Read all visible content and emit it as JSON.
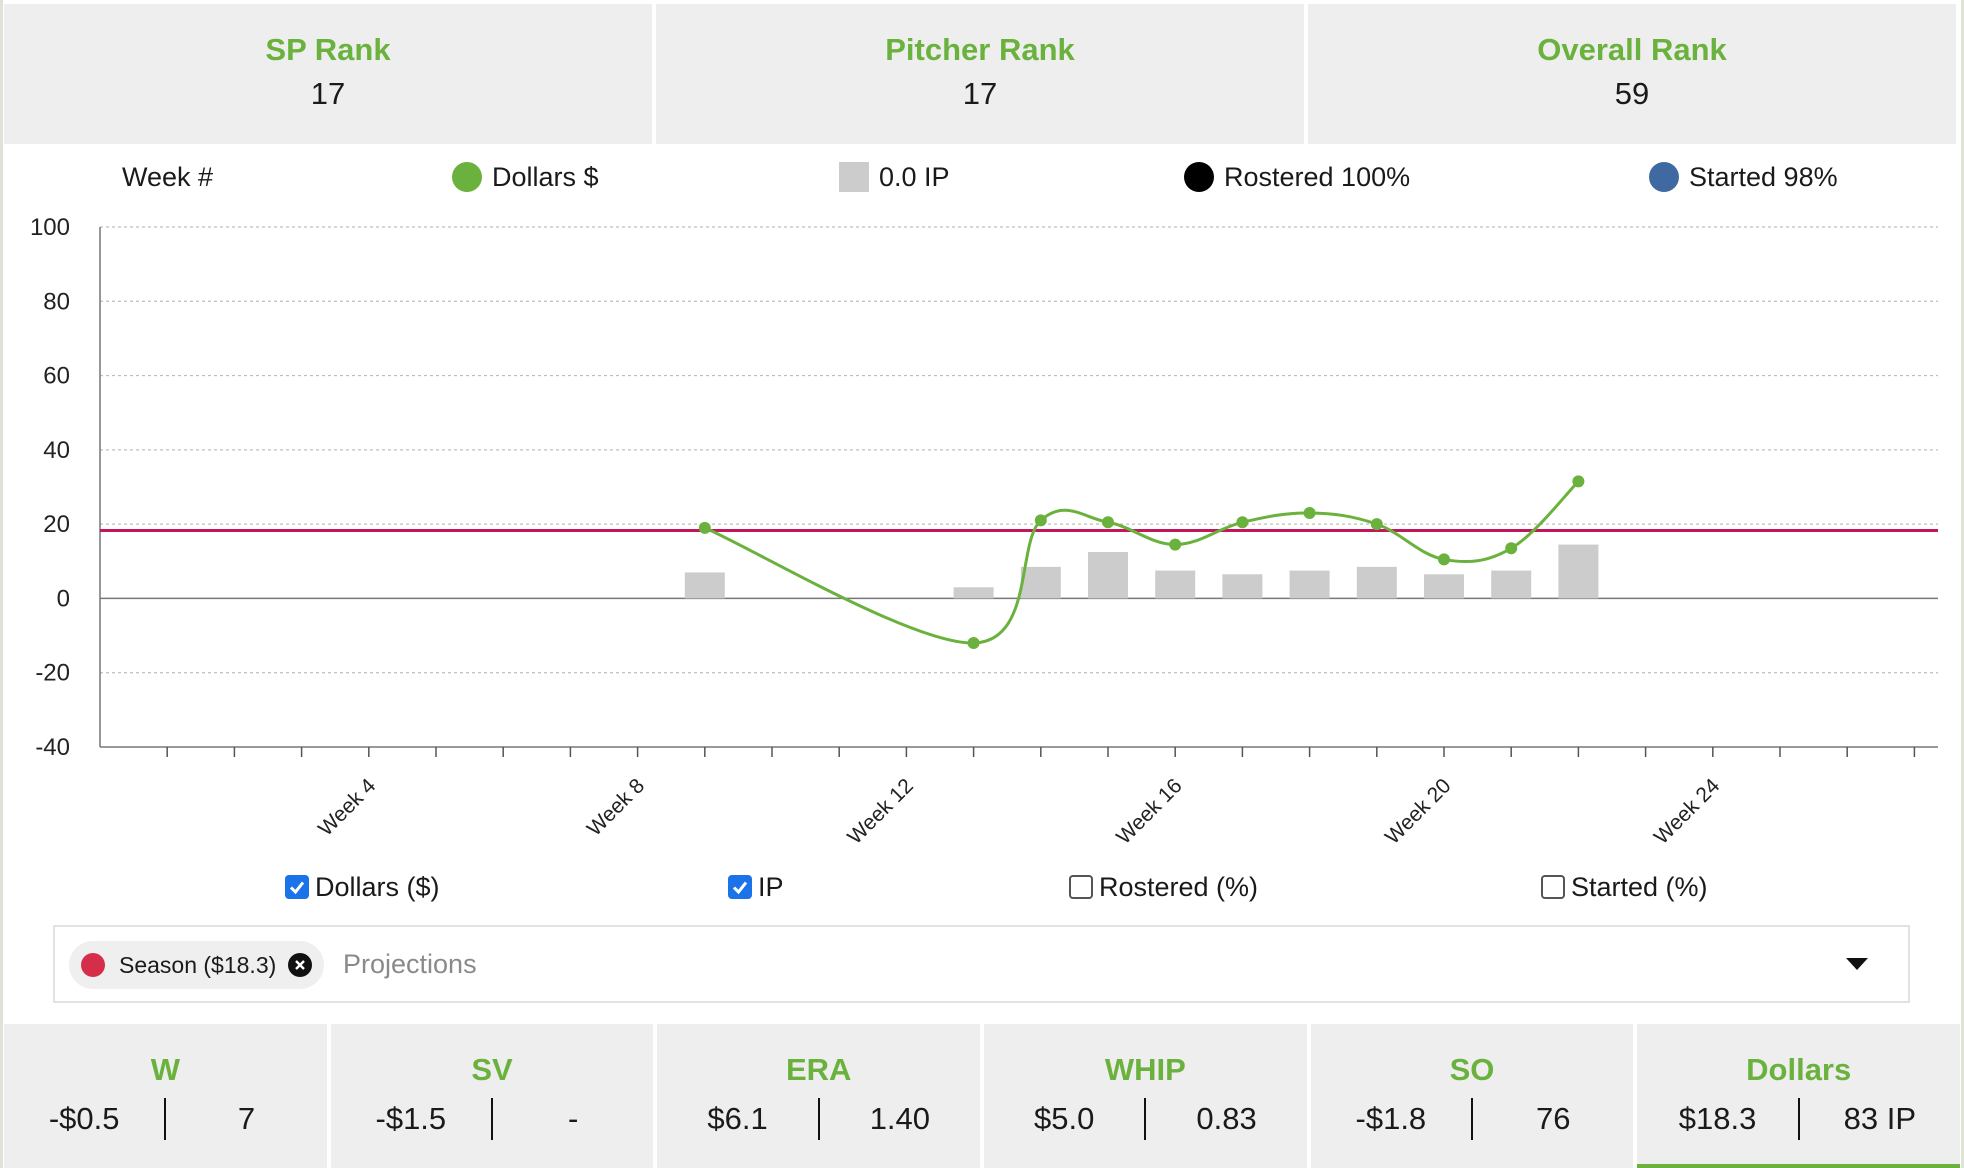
{
  "ranks": [
    {
      "label": "SP Rank",
      "value": "17"
    },
    {
      "label": "Pitcher Rank",
      "value": "17"
    },
    {
      "label": "Overall Rank",
      "value": "59"
    }
  ],
  "legend": {
    "week": "Week #",
    "dollars": "Dollars $",
    "ip": "0.0 IP",
    "rostered": "Rostered 100%",
    "started": "Started 98%"
  },
  "colors": {
    "green": "#6ab23d",
    "bar": "#cccccc",
    "season_line": "#c2185b",
    "started": "#3f6aa1",
    "rostered": "#000000"
  },
  "chart_data": {
    "type": "line",
    "ylim": [
      -40,
      100
    ],
    "yticks": [
      100,
      80,
      60,
      40,
      20,
      0,
      -20,
      -40
    ],
    "x_range": [
      1,
      27
    ],
    "x_tick_labels": [
      {
        "week": 4,
        "label": "Week 4"
      },
      {
        "week": 8,
        "label": "Week 8"
      },
      {
        "week": 12,
        "label": "Week 12"
      },
      {
        "week": 16,
        "label": "Week 16"
      },
      {
        "week": 20,
        "label": "Week 20"
      },
      {
        "week": 24,
        "label": "Week 24"
      }
    ],
    "series": [
      {
        "name": "Dollars $",
        "type": "line",
        "points": [
          {
            "x": 9,
            "y": 19
          },
          {
            "x": 13,
            "y": -12
          },
          {
            "x": 14,
            "y": 21
          },
          {
            "x": 15,
            "y": 20.5
          },
          {
            "x": 16,
            "y": 14.5
          },
          {
            "x": 17,
            "y": 20.5
          },
          {
            "x": 18,
            "y": 23
          },
          {
            "x": 19,
            "y": 20
          },
          {
            "x": 20,
            "y": 10.5
          },
          {
            "x": 21,
            "y": 13.5
          },
          {
            "x": 22,
            "y": 31.5
          }
        ]
      },
      {
        "name": "IP",
        "type": "bar",
        "points": [
          {
            "x": 9,
            "y": 7
          },
          {
            "x": 13,
            "y": 3
          },
          {
            "x": 14,
            "y": 8.5
          },
          {
            "x": 15,
            "y": 12.5
          },
          {
            "x": 16,
            "y": 7.5
          },
          {
            "x": 17,
            "y": 6.5
          },
          {
            "x": 18,
            "y": 7.5
          },
          {
            "x": 19,
            "y": 8.5
          },
          {
            "x": 20,
            "y": 6.5
          },
          {
            "x": 21,
            "y": 7.5
          },
          {
            "x": 22,
            "y": 14.5
          }
        ]
      }
    ],
    "reference_line": {
      "name": "Season ($18.3)",
      "y": 18.3
    }
  },
  "checkboxes": [
    {
      "label": "Dollars ($)",
      "checked": true
    },
    {
      "label": "IP",
      "checked": true
    },
    {
      "label": "Rostered (%)",
      "checked": false
    },
    {
      "label": "Started (%)",
      "checked": false
    }
  ],
  "selector": {
    "chip_label": "Season ($18.3)",
    "placeholder": "Projections"
  },
  "stats": [
    {
      "label": "W",
      "left": "-$0.5",
      "right": "7"
    },
    {
      "label": "SV",
      "left": "-$1.5",
      "right": "-"
    },
    {
      "label": "ERA",
      "left": "$6.1",
      "right": "1.40"
    },
    {
      "label": "WHIP",
      "left": "$5.0",
      "right": "0.83"
    },
    {
      "label": "SO",
      "left": "-$1.8",
      "right": "76"
    },
    {
      "label": "Dollars",
      "left": "$18.3",
      "right": "83 IP"
    }
  ]
}
